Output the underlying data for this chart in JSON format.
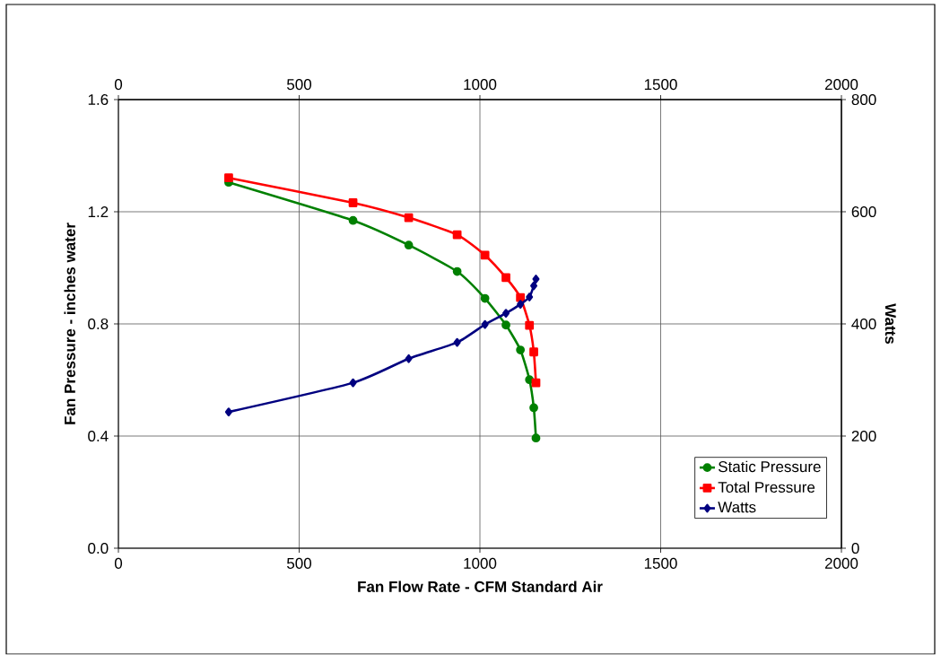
{
  "chart_data": {
    "type": "line",
    "xlabel": "Fan Flow Rate - CFM Standard Air",
    "ylabel": "Fan Pressure - inches water",
    "y2label": "Watts",
    "xlim": [
      0,
      2000
    ],
    "xticks": [
      0,
      500,
      1000,
      1500,
      2000
    ],
    "x2lim": [
      0,
      2000
    ],
    "x2ticks": [
      0,
      500,
      1000,
      1500,
      2000
    ],
    "ylim": [
      0,
      1.6
    ],
    "yticks": [
      {
        "value": 0,
        "label": "0.0"
      },
      0.4,
      0.8,
      1.2,
      1.6
    ],
    "y2lim": [
      0,
      800
    ],
    "y2ticks": [
      0,
      200,
      400,
      600,
      800
    ],
    "grid": true,
    "legend": "bottom right",
    "x": [
      305,
      649,
      803,
      937,
      1014,
      1072,
      1112,
      1137,
      1149,
      1155
    ],
    "series": [
      {
        "name": "Static Pressure",
        "color": "#008000",
        "marker": "circle",
        "values": [
          1.305,
          1.169,
          1.081,
          0.987,
          0.891,
          0.796,
          0.707,
          0.601,
          0.501,
          0.393
        ]
      },
      {
        "name": "Total Pressure",
        "color": "#ff0000",
        "marker": "square",
        "values": [
          1.321,
          1.232,
          1.179,
          1.118,
          1.045,
          0.965,
          0.894,
          0.795,
          0.7,
          0.59
        ]
      },
      {
        "name": "Watts",
        "color": "#000080",
        "marker": "diamond",
        "axis": "y2",
        "values": [
          243,
          295,
          338,
          367,
          399,
          419,
          435,
          448,
          468,
          480
        ]
      }
    ]
  }
}
